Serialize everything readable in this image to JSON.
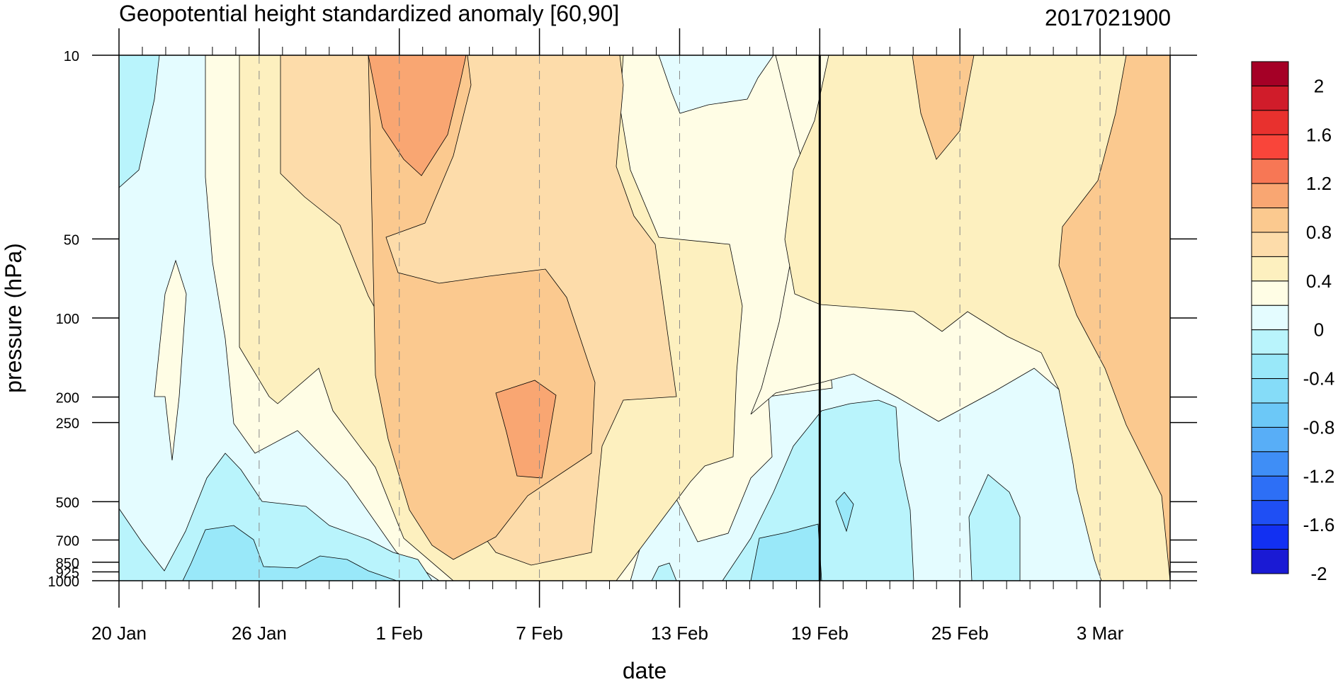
{
  "chart_data": {
    "type": "contour",
    "title": "Geopotential height standardized anomaly [60,90]",
    "date_label": "2017021900",
    "xlabel": "date",
    "ylabel": "pressure (hPa)",
    "y_scale": "log",
    "y_reversed": true,
    "y_range": [
      1000,
      10
    ],
    "x_range": [
      "2017-01-20",
      "2017-03-07"
    ],
    "x_ticks": [
      "20 Jan",
      "26 Jan",
      "1 Feb",
      "7 Feb",
      "13 Feb",
      "19 Feb",
      "25 Feb",
      "3 Mar"
    ],
    "y_ticks": [
      {
        "value": 10,
        "label": "10"
      },
      {
        "value": 50,
        "label": "50"
      },
      {
        "value": 100,
        "label": "100"
      },
      {
        "value": 200,
        "label": "200"
      },
      {
        "value": 250,
        "label": "250"
      },
      {
        "value": 500,
        "label": "500"
      },
      {
        "value": 700,
        "label": "700"
      },
      {
        "value": 850,
        "label": "850"
      },
      {
        "value": 925,
        "label": "925"
      },
      {
        "value": 1000,
        "label": "1000"
      }
    ],
    "current_date_line": "19 Feb",
    "grid": "dashed vertical lines at date ticks",
    "colorbar": {
      "labels": [
        "2",
        "1.6",
        "1.2",
        "0.8",
        "0.4",
        "0",
        "-0.4",
        "-0.8",
        "-1.2",
        "-1.6",
        "-2"
      ],
      "levels": [
        2.2,
        2.0,
        1.8,
        1.6,
        1.4,
        1.2,
        1.0,
        0.8,
        0.6,
        0.4,
        0.2,
        0.0,
        -0.2,
        -0.4,
        -0.6,
        -0.8,
        -1.0,
        -1.2,
        -1.4,
        -1.6,
        -1.8,
        -2.0,
        -2.2
      ],
      "colors": [
        "#a50026",
        "#d01c2a",
        "#e8312e",
        "#f9453a",
        "#f77755",
        "#f9a672",
        "#fbc98f",
        "#fddcaa",
        "#fdf0bf",
        "#fffde5",
        "#e4fcff",
        "#b9f4fc",
        "#99e8f9",
        "#85dcf8",
        "#6cc8f7",
        "#58aef7",
        "#3f8ef6",
        "#2d6ff6",
        "#1f4ff4",
        "#1230f2",
        "#1a1ad4"
      ]
    },
    "levels_shown": [
      -0.8,
      -0.6,
      -0.4,
      -0.2,
      0.0,
      0.2,
      0.4,
      0.6,
      0.8,
      1.0
    ]
  }
}
